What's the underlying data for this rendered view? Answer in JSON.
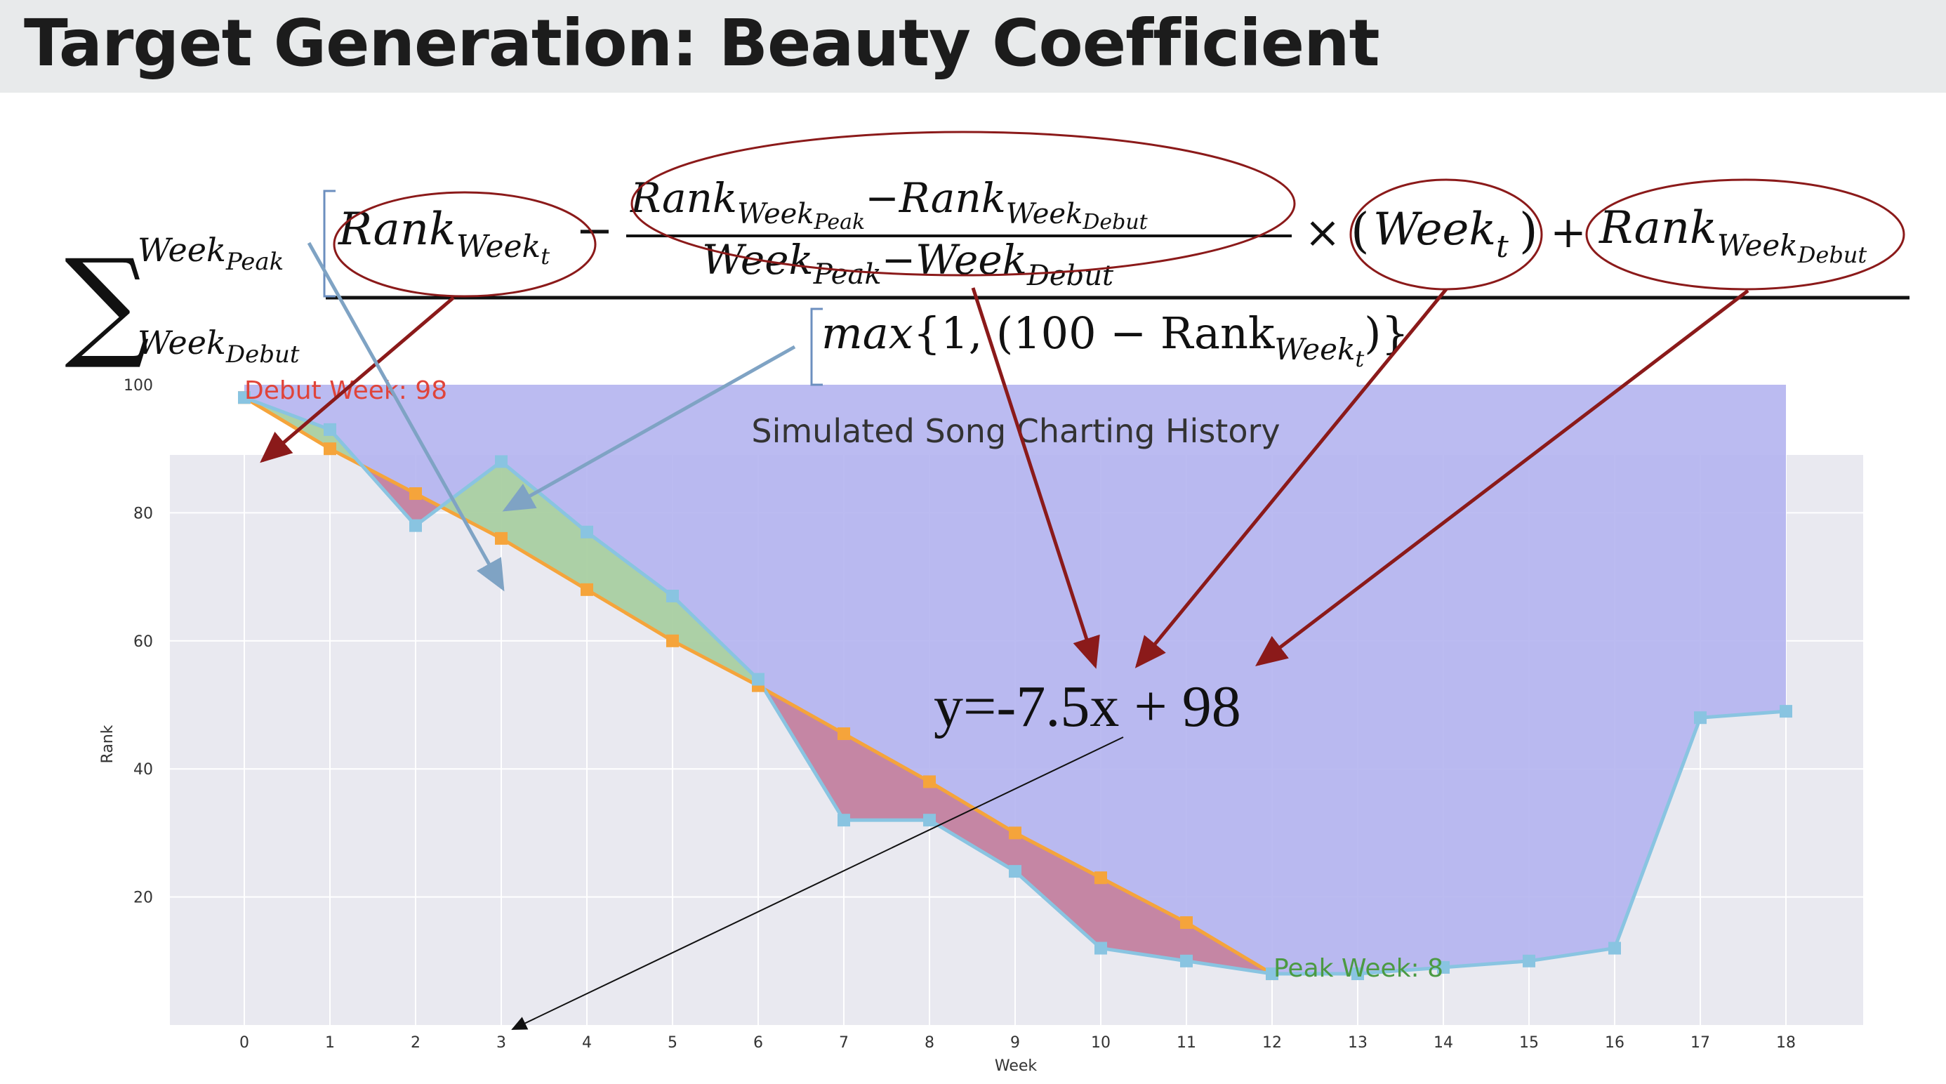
{
  "slide": {
    "title": "Target Generation: Beauty Coefficient"
  },
  "formula": {
    "sum_upper": "Week",
    "sum_upper_sub": "Peak",
    "sum_lower": "Week",
    "sum_lower_sub": "Debut",
    "term_rank": "Rank",
    "term_rank_sub": "Week",
    "term_rank_subsub": "t",
    "minus": "−",
    "frac_num_rank1": "Rank",
    "frac_num_rank1_sub": "Week",
    "frac_num_rank1_subsub": "Peak",
    "frac_num_minus": "−",
    "frac_num_rank2": "Rank",
    "frac_num_rank2_sub": "Week",
    "frac_num_rank2_subsub": "Debut",
    "frac_den_week1": "Week",
    "frac_den_week1_sub": "Peak",
    "frac_den_minus": "−",
    "frac_den_week2": "Week",
    "frac_den_week2_sub": "Debut",
    "times": "×",
    "paren_open": "(",
    "week_t": "Week",
    "week_t_sub": "t",
    "paren_close": ")",
    "plus": "+",
    "rank_debut": "Rank",
    "rank_debut_sub": "Week",
    "rank_debut_subsub": "Debut",
    "denominator_max": "max",
    "denominator_body": "{1, (100 − Rank",
    "denominator_sub": "Week",
    "denominator_subsub": "t",
    "denominator_close": ")}"
  },
  "annotation": {
    "line_equation": "y=-7.5x + 98"
  },
  "colors": {
    "actual_line": "#89c4e1",
    "expected_line": "#f5a43b",
    "fill_above": "#b4b4ef",
    "fill_green": "#a9cfa1",
    "fill_red": "#c5839f",
    "plot_bg": "#e9e9f0",
    "arrow_dark_red": "#8b1a1a",
    "arrow_blue": "#7fa3c4",
    "circle": "#8b1a1a",
    "debut_label": "#e0443a",
    "peak_label": "#4b9a42"
  },
  "chart_data": {
    "type": "line",
    "title": "Simulated Song Charting History",
    "xlabel": "Week",
    "ylabel": "Rank",
    "xlim": [
      0,
      18
    ],
    "ylim": [
      0,
      100
    ],
    "xticks": [
      0,
      1,
      2,
      3,
      4,
      5,
      6,
      7,
      8,
      9,
      10,
      11,
      12,
      13,
      14,
      15,
      16,
      17,
      18
    ],
    "yticks": [
      20,
      40,
      60,
      80,
      100
    ],
    "grid": true,
    "x": [
      0,
      1,
      2,
      3,
      4,
      5,
      6,
      7,
      8,
      9,
      10,
      11,
      12,
      13,
      14,
      15,
      16,
      17,
      18
    ],
    "series": [
      {
        "values": [
          98,
          93,
          78,
          88,
          77,
          67,
          54,
          32,
          32,
          24,
          12,
          10,
          8,
          8,
          9,
          10,
          12,
          48,
          49
        ]
      },
      {
        "x": [
          0,
          1,
          2,
          3,
          4,
          5,
          6,
          7,
          8,
          9,
          10,
          11,
          12
        ],
        "values": [
          98,
          90,
          83,
          76,
          68,
          60,
          53,
          45.5,
          38,
          30,
          23,
          16,
          8
        ]
      }
    ],
    "annotations": [
      {
        "text": "Debut Week: 98",
        "x": 0,
        "y": 98
      },
      {
        "text": "Peak Week: 8",
        "x": 12,
        "y": 8
      }
    ]
  }
}
